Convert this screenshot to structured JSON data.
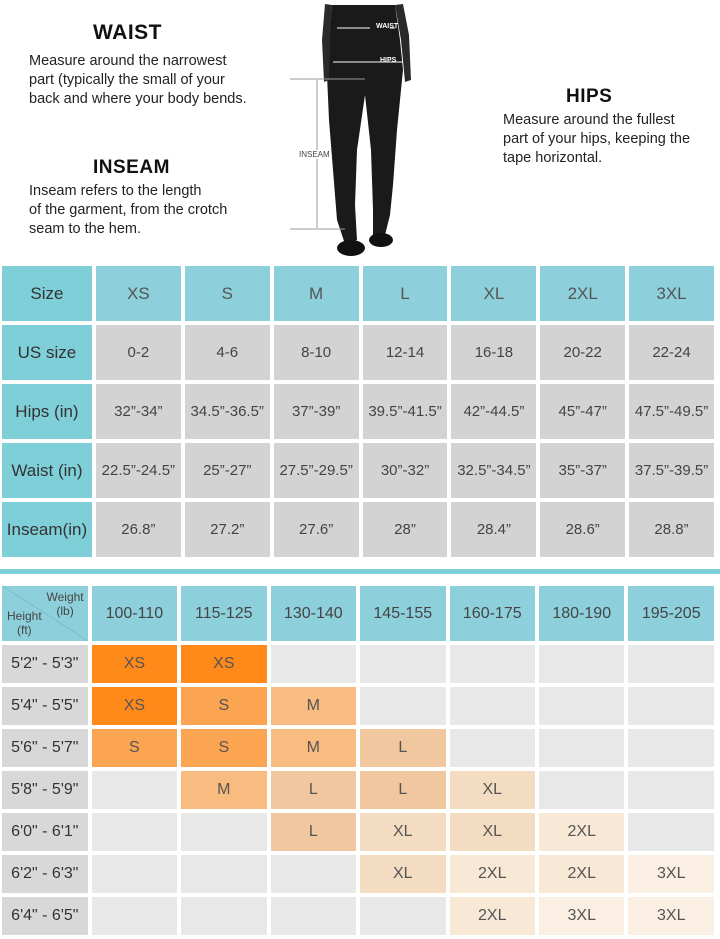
{
  "guide": {
    "waist": {
      "title": "WAIST",
      "text": "Measure around the narrowest\npart (typically the small of your\nback and where your body bends."
    },
    "inseam": {
      "title": "INSEAM",
      "text": "Inseam refers to the length\nof the garment, from the crotch\nseam to the hem."
    },
    "hips": {
      "title": "HIPS",
      "text": "Measure around the fullest\npart of your hips, keeping the\ntape horizontal."
    },
    "figure_labels": {
      "waist": "WAIST",
      "hips": "HIPS",
      "inseam": "INSEAM"
    }
  },
  "size_chart": {
    "row_labels": [
      "Size",
      "US size",
      "Hips (in)",
      "Waist (in)",
      "Inseam(in)"
    ],
    "sizes": [
      "XS",
      "S",
      "M",
      "L",
      "XL",
      "2XL",
      "3XL"
    ],
    "rows": [
      [
        "0-2",
        "4-6",
        "8-10",
        "12-14",
        "16-18",
        "20-22",
        "22-24"
      ],
      [
        "32”-34”",
        "34.5”-36.5”",
        "37”-39”",
        "39.5”-41.5”",
        "42”-44.5”",
        "45”-47”",
        "47.5”-49.5”"
      ],
      [
        "22.5”-24.5”",
        "25”-27”",
        "27.5”-29.5”",
        "30”-32”",
        "32.5”-34.5”",
        "35”-37”",
        "37.5”-39.5”"
      ],
      [
        "26.8”",
        "27.2”",
        "27.6”",
        "28”",
        "28.4”",
        "28.6”",
        "28.8”"
      ]
    ]
  },
  "fit_chart": {
    "corner": {
      "weight": "Weight\n(lb)",
      "height": "Height\n(ft)"
    },
    "weights": [
      "100-110",
      "115-125",
      "130-140",
      "145-155",
      "160-175",
      "180-190",
      "195-205"
    ],
    "heights": [
      "5'2\" - 5'3\"",
      "5'4\" - 5'5\"",
      "5'6\" - 5'7\"",
      "5'8\" - 5'9\"",
      "6'0\" - 6'1\"",
      "6'2\" - 6'3\"",
      "6'4\" - 6'5\""
    ],
    "grid": [
      [
        "XS",
        "XS",
        "",
        "",
        "",
        "",
        ""
      ],
      [
        "XS",
        "S",
        "M",
        "",
        "",
        "",
        ""
      ],
      [
        "S",
        "S",
        "M",
        "L",
        "",
        "",
        ""
      ],
      [
        "",
        "M",
        "L",
        "L",
        "XL",
        "",
        ""
      ],
      [
        "",
        "",
        "L",
        "XL",
        "XL",
        "2XL",
        ""
      ],
      [
        "",
        "",
        "",
        "XL",
        "2XL",
        "2XL",
        "3XL"
      ],
      [
        "",
        "",
        "",
        "",
        "2XL",
        "3XL",
        "3XL"
      ]
    ],
    "size_colors": {
      "XS": "#ff8a1a",
      "S": "#fba552",
      "M": "#f8bb80",
      "L": "#f0c79f",
      "XL": "#f4dcc2",
      "2XL": "#f8e8d6",
      "3XL": "#faefe2",
      "empty": "#e8e8e8"
    }
  }
}
